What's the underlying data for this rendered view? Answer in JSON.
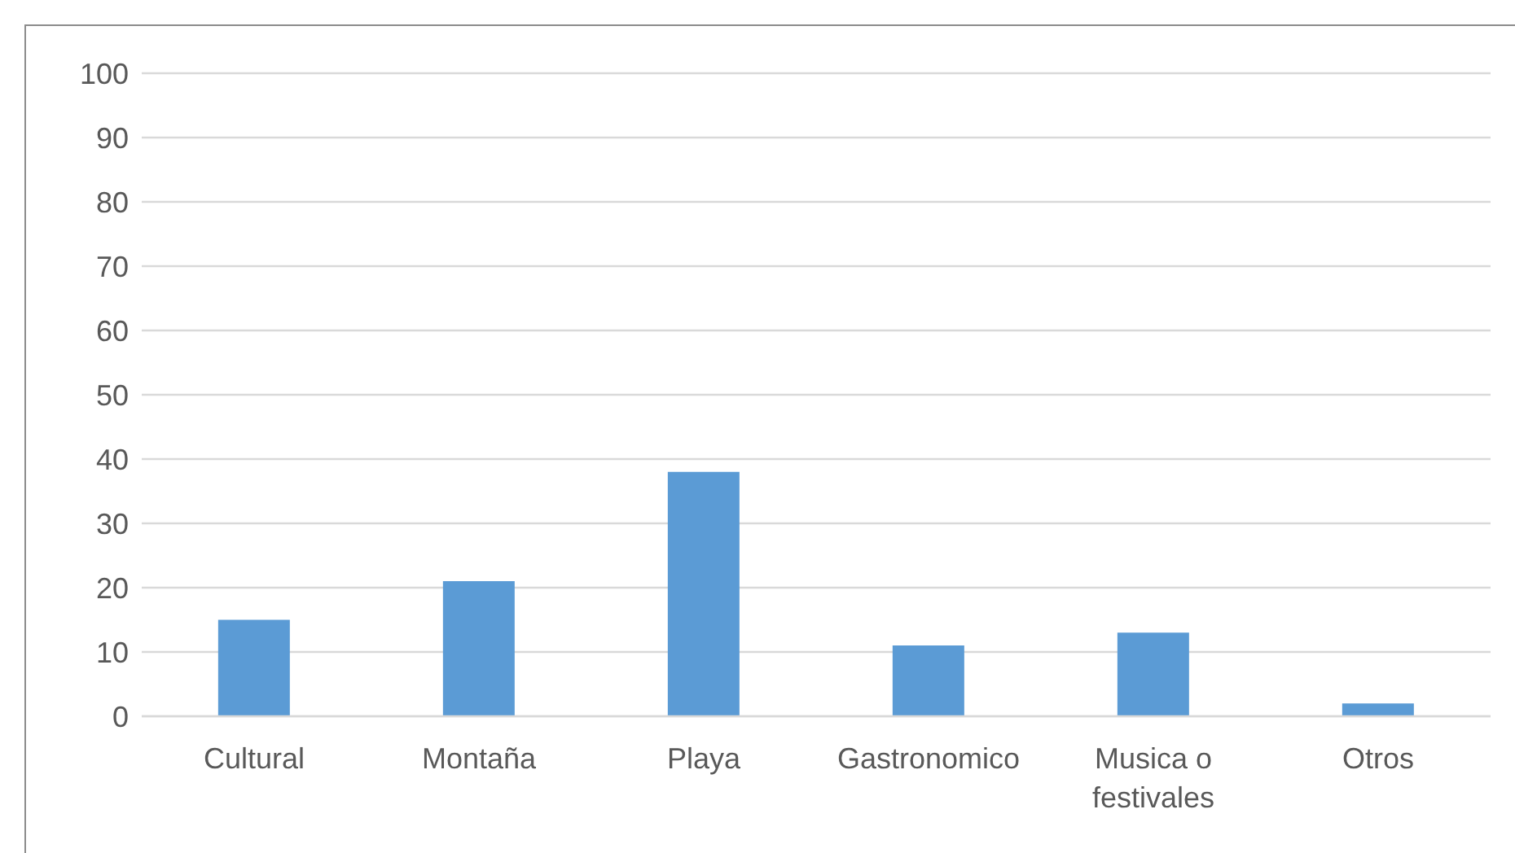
{
  "chart_data": {
    "type": "bar",
    "categories": [
      "Cultural",
      "Montaña",
      "Playa",
      "Gastronomico",
      "Musica o festivales",
      "Otros"
    ],
    "values": [
      15,
      21,
      38,
      11,
      13,
      2
    ],
    "color": "#5b9bd5",
    "ylim": [
      0,
      100
    ],
    "yticks": [
      0,
      10,
      20,
      30,
      40,
      50,
      60,
      70,
      80,
      90,
      100
    ],
    "grid": "y"
  }
}
